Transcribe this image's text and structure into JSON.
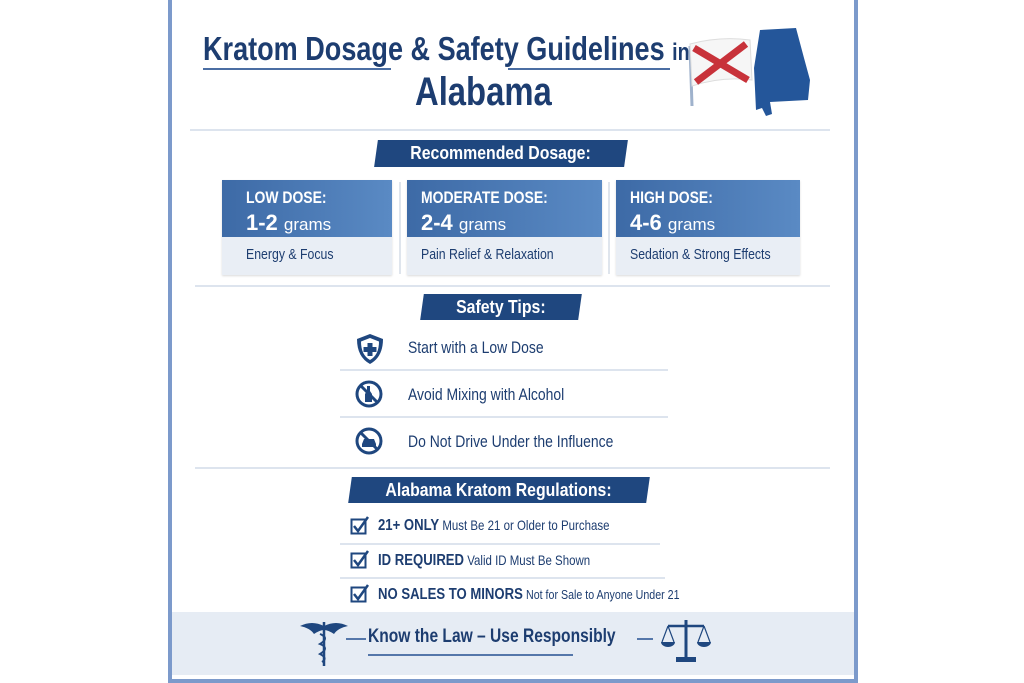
{
  "title": {
    "line1": "Kratom Dosage & Safety Guidelines",
    "in": "in",
    "line2": "Alabama"
  },
  "colors": {
    "navy": "#1d3d70",
    "banner": "#1f477f",
    "box_header": "#4a78b5",
    "box_body": "#e9eef5",
    "flag_red": "#c8323a"
  },
  "dosage": {
    "heading": "Recommended Dosage:",
    "levels": [
      {
        "label": "LOW DOSE:",
        "amount": "1-2",
        "unit": "grams",
        "effect": "Energy & Focus"
      },
      {
        "label": "MODERATE DOSE:",
        "amount": "2-4",
        "unit": "grams",
        "effect": "Pain Relief & Relaxation"
      },
      {
        "label": "HIGH DOSE:",
        "amount": "4-6",
        "unit": "grams",
        "effect": "Sedation & Strong Effects"
      }
    ]
  },
  "safety": {
    "heading": "Safety Tips:",
    "tips": [
      {
        "icon": "shield-cross-icon",
        "text": "Start with a Low Dose"
      },
      {
        "icon": "no-alcohol-icon",
        "text": "Avoid Mixing with Alcohol"
      },
      {
        "icon": "no-driving-icon",
        "text": "Do Not Drive Under the Influence"
      }
    ]
  },
  "regulations": {
    "heading": "Alabama Kratom Regulations:",
    "items": [
      {
        "title": "21+ ONLY",
        "text": "Must Be 21 or Older to Purchase"
      },
      {
        "title": "ID REQUIRED",
        "text": "Valid ID Must Be Shown"
      },
      {
        "title": "NO SALES TO MINORS",
        "text": "Not for Sale to Anyone Under 21"
      }
    ]
  },
  "footer": {
    "slogan": "Know the Law – Use Responsibly",
    "left_icon": "caduceus-icon",
    "right_icon": "scales-icon"
  }
}
